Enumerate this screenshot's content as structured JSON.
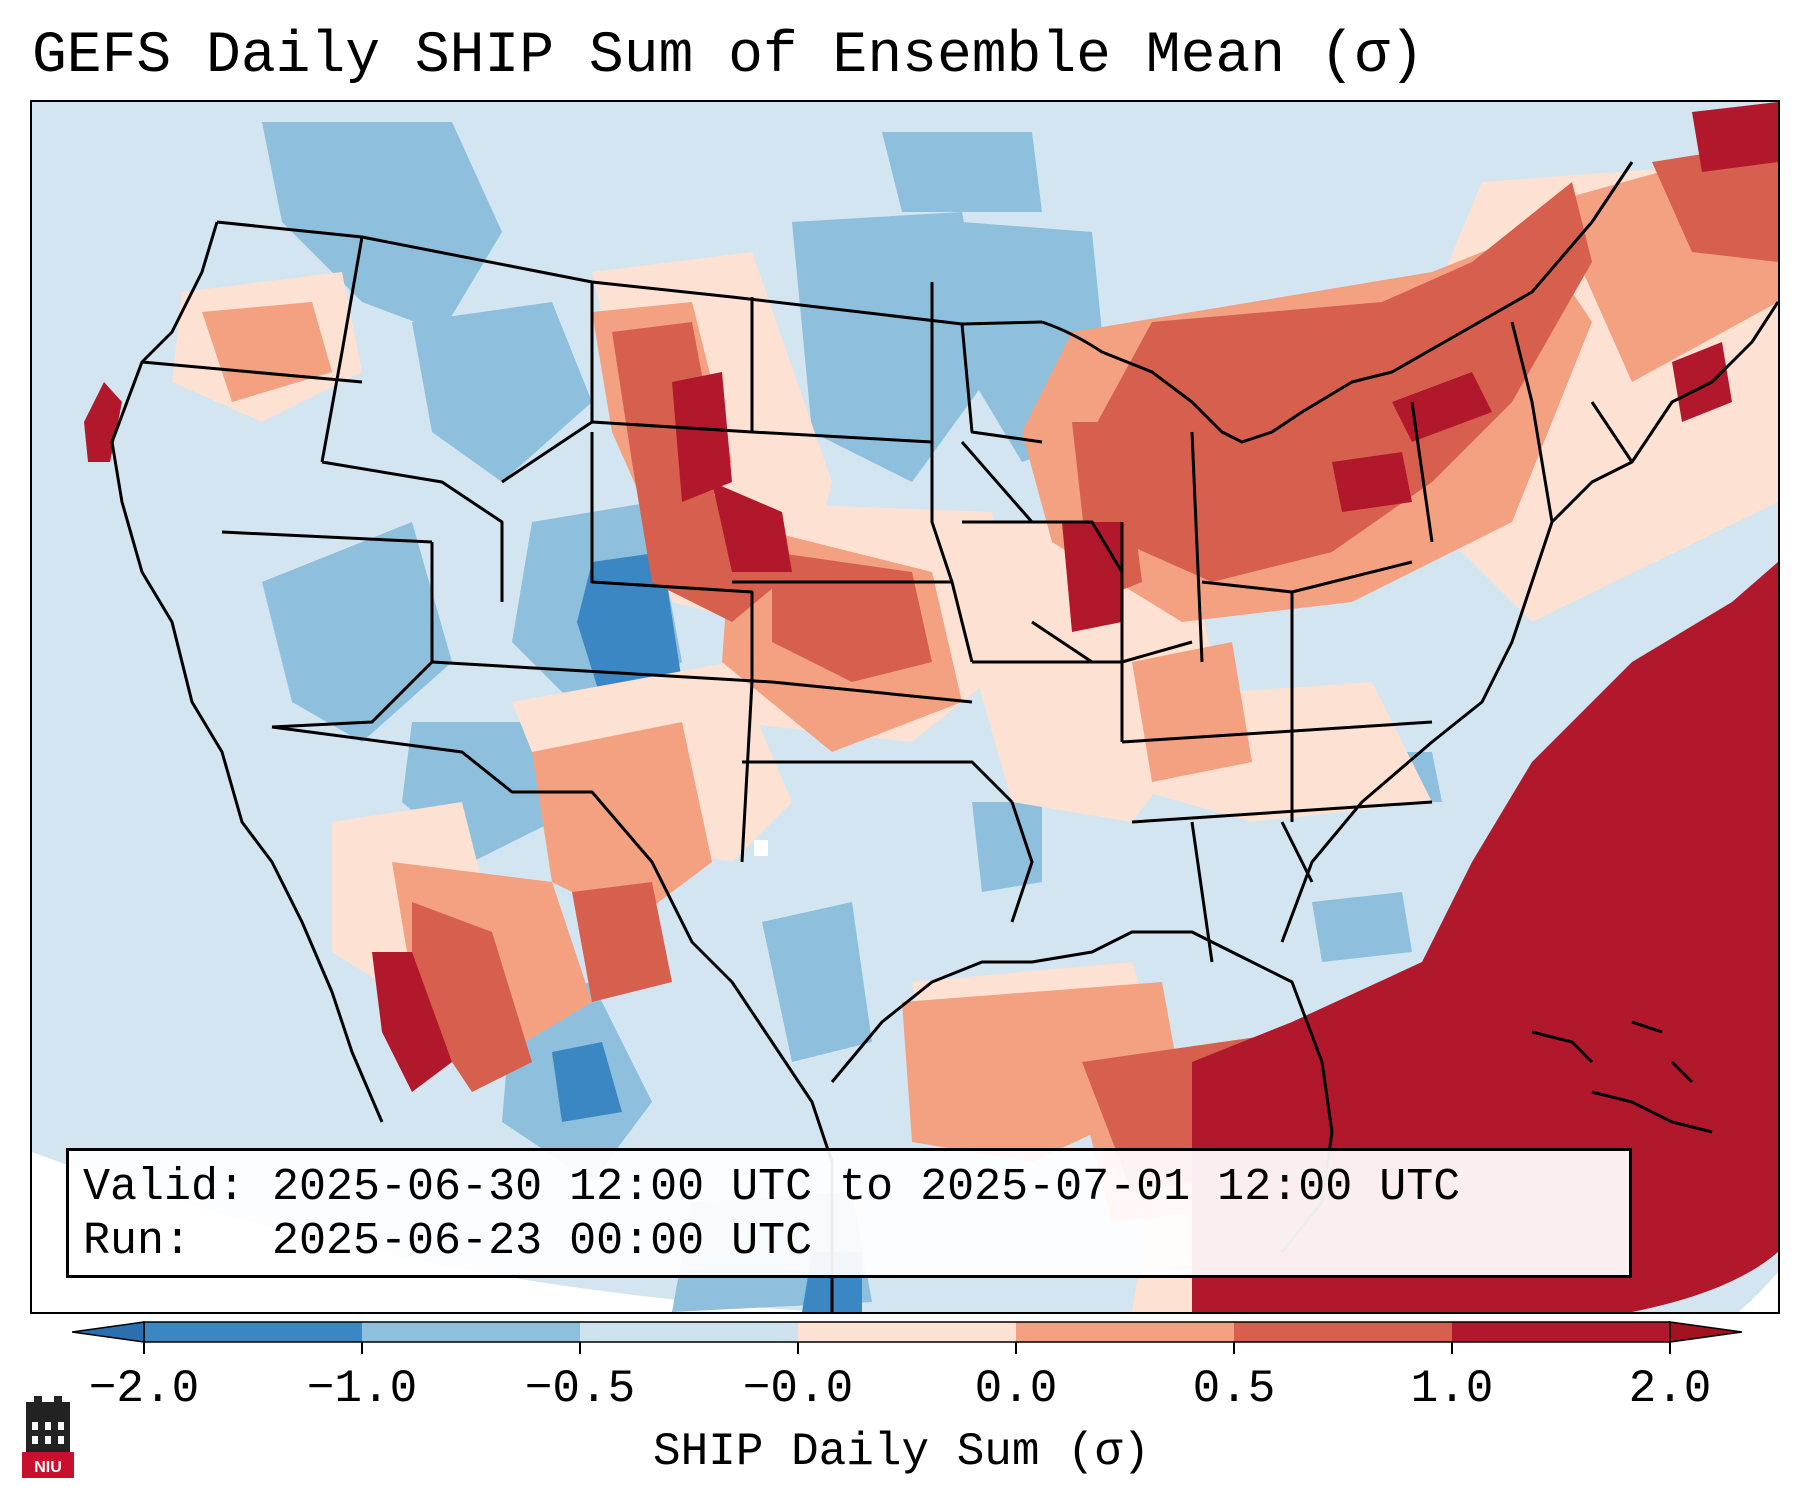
{
  "title": "GEFS Daily SHIP Sum of Ensemble Mean (σ)",
  "info": {
    "valid_line": "Valid: 2025-06-30 12:00 UTC to 2025-07-01 12:00 UTC",
    "run_line": "Run:   2025-06-23 00:00 UTC"
  },
  "colorbar": {
    "label": "SHIP Daily Sum (σ)",
    "ticks": [
      "−2.0",
      "−1.0",
      "−0.5",
      "−0.0",
      "0.0",
      "0.5",
      "1.0",
      "2.0"
    ],
    "colors": [
      "#3b87c3",
      "#8ebfdc",
      "#cfe3ef",
      "#fde1d2",
      "#f3a181",
      "#d6604d",
      "#b2182b"
    ],
    "extend": "both",
    "under_color": "#2b6fb0",
    "over_color": "#a3131f"
  },
  "map": {
    "region": "Contiguous United States",
    "color_scale": {
      "strong_negative": "#3b87c3",
      "negative": "#8ebfdc",
      "weak_negative": "#cfe3ef",
      "weak_positive": "#fde1d2",
      "positive": "#f3a181",
      "strong_positive": "#d6604d",
      "extreme_positive": "#b2182b"
    }
  },
  "logo": {
    "text": "NIU",
    "color": "#c8102e"
  }
}
